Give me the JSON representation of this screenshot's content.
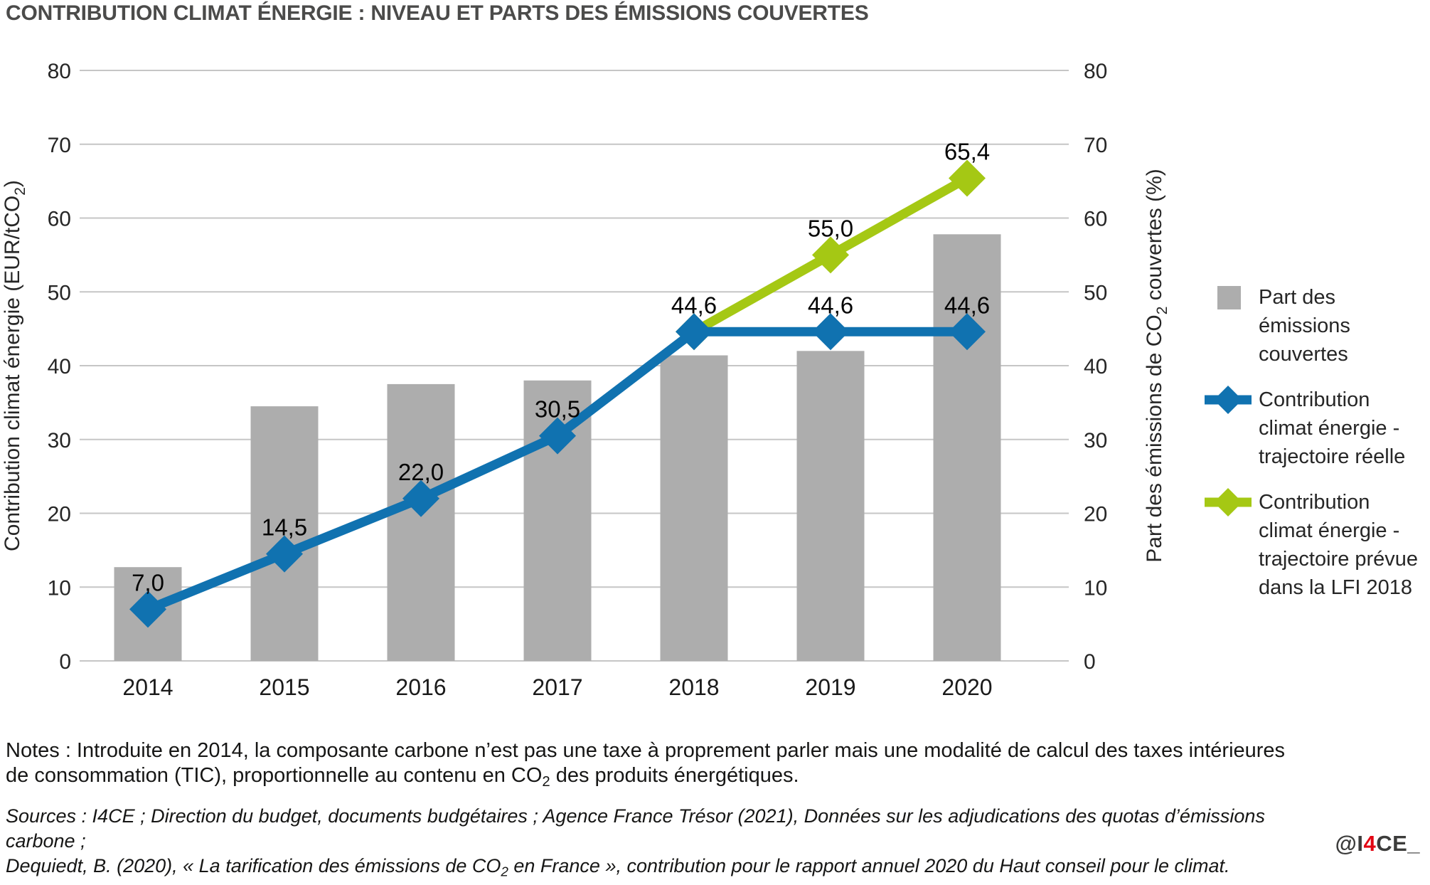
{
  "title": "CONTRIBUTION CLIMAT ÉNERGIE : NIVEAU ET PARTS DES ÉMISSIONS COUVERTES",
  "chart_data": {
    "type": "bar",
    "subtype": "combo-bar-line",
    "title": "CONTRIBUTION CLIMAT ÉNERGIE : NIVEAU ET PARTS DES ÉMISSIONS COUVERTES",
    "categories": [
      "2014",
      "2015",
      "2016",
      "2017",
      "2018",
      "2019",
      "2020"
    ],
    "grid": "horizontal",
    "legend_position": "right",
    "y_left": {
      "title_segments": [
        {
          "t": "Contribution climat énergie (EUR/tCO",
          "sub": false
        },
        {
          "t": "2",
          "sub": true
        },
        {
          "t": ")",
          "sub": false
        }
      ],
      "ticks": [
        0,
        10,
        20,
        30,
        40,
        50,
        60,
        70,
        80
      ],
      "lim": [
        0,
        80
      ]
    },
    "y_right": {
      "title_segments": [
        {
          "t": "Part des émissions de CO",
          "sub": false
        },
        {
          "t": "2",
          "sub": true
        },
        {
          "t": " couvertes (%)",
          "sub": false
        }
      ],
      "ticks": [
        0,
        10,
        20,
        30,
        40,
        50,
        60,
        70,
        80
      ],
      "lim": [
        0,
        80
      ]
    },
    "series": [
      {
        "name": "Part des émissions couvertes",
        "kind": "bar",
        "axis": "right",
        "color": "#adadad",
        "values": [
          12.7,
          34.5,
          37.5,
          38.0,
          41.4,
          42.0,
          57.8
        ]
      },
      {
        "name": "Contribution climat énergie - trajectoire réelle",
        "kind": "line",
        "axis": "left",
        "color": "#1072b0",
        "marker": "diamond",
        "values": [
          7.0,
          14.5,
          22.0,
          30.5,
          44.6,
          44.6,
          44.6
        ],
        "point_labels": [
          "7,0",
          "14,5",
          "22,0",
          "30,5",
          "44,6",
          "44,6",
          "44,6"
        ]
      },
      {
        "name": "Contribution climat énergie - trajectoire prévue dans la LFI 2018",
        "kind": "line",
        "axis": "left",
        "color": "#a5c814",
        "marker": "diamond",
        "values": [
          null,
          null,
          null,
          null,
          44.6,
          55.0,
          65.4
        ],
        "point_labels": [
          null,
          null,
          null,
          null,
          null,
          "55,0",
          "65,4"
        ]
      }
    ]
  },
  "legend": {
    "items": [
      {
        "label": "Part des émissions\ncouvertes",
        "swatch": "square",
        "color": "#adadad"
      },
      {
        "label": "Contribution\nclimat énergie -\ntrajectoire réelle",
        "swatch": "line-diamond",
        "color": "#1072b0"
      },
      {
        "label": "Contribution\nclimat énergie -\ntrajectoire prévue\ndans la LFI 2018",
        "swatch": "line-diamond",
        "color": "#a5c814"
      }
    ]
  },
  "notes_segments": [
    {
      "t": "Notes : Introduite en 2014, la composante carbone n’est pas une taxe à proprement parler mais une modalité de calcul des taxes intérieures\nde consommation (TIC), proportionnelle au contenu en CO",
      "sub": false
    },
    {
      "t": "2",
      "sub": true
    },
    {
      "t": " des produits énergétiques.",
      "sub": false
    }
  ],
  "sources_segments": [
    {
      "t": "Sources : I4CE ; Direction du budget, documents budgétaires ; Agence France Trésor (2021), Données sur les adjudications des quotas d’émissions carbone ;\nDequiedt, B. (2020), « La tarification des émissions de CO",
      "sub": false
    },
    {
      "t": "2",
      "sub": true
    },
    {
      "t": " en France », contribution pour le rapport annuel 2020 du Haut conseil pour le climat.",
      "sub": false
    }
  ],
  "handle": {
    "prefix": "@I",
    "highlight": "4",
    "suffix": "CE_"
  },
  "colors": {
    "bar": "#adadad",
    "line_real": "#1072b0",
    "line_planned": "#a5c814",
    "gridline": "#c6c6c6",
    "title": "#4b4b4a",
    "text": "#262626",
    "handle_accent": "#e30613"
  }
}
